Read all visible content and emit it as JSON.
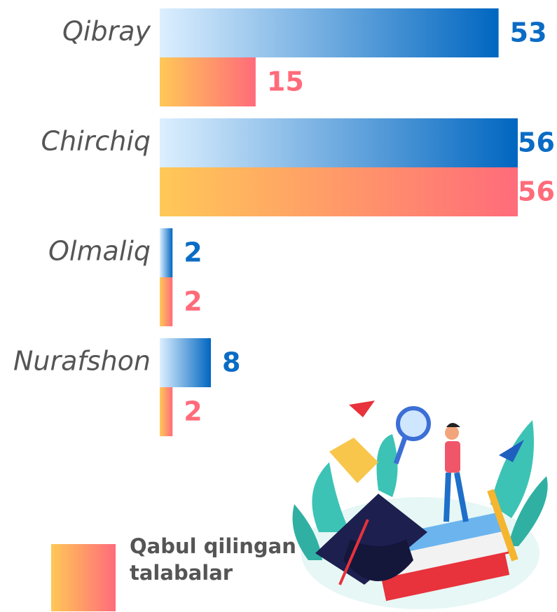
{
  "chart_data": {
    "type": "bar",
    "orientation": "horizontal",
    "categories": [
      "Qibray",
      "Chirchiq",
      "Olmaliq",
      "Nurafshon"
    ],
    "series": [
      {
        "color": "#0a6cc4",
        "gradient": [
          "#dcefff",
          "#0066c0"
        ],
        "values": [
          53,
          56,
          2,
          8
        ]
      },
      {
        "name": "Qabul qilingan talabalar",
        "color": "#ff6b7a",
        "gradient": [
          "#ffc857",
          "#ff6b7a"
        ],
        "values": [
          15,
          56,
          2,
          2
        ]
      }
    ]
  }
}
